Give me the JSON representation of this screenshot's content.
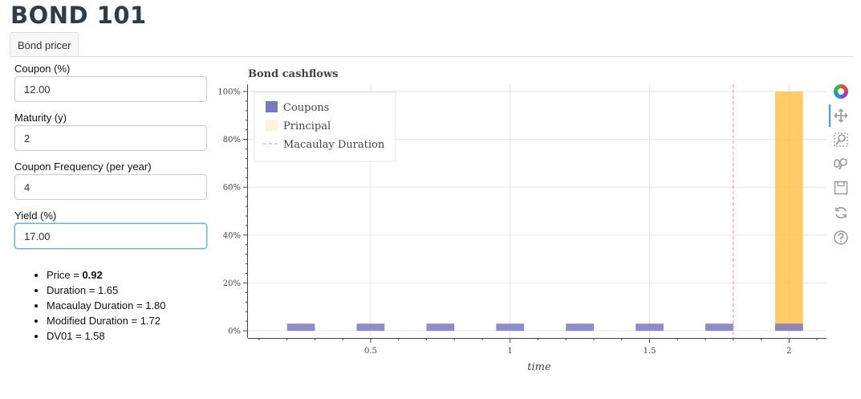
{
  "app_title": "BOND 101",
  "tabs": [
    {
      "label": "Bond pricer"
    }
  ],
  "form": {
    "coupon": {
      "label": "Coupon (%)",
      "value": "12.00"
    },
    "maturity": {
      "label": "Maturity (y)",
      "value": "2"
    },
    "frequency": {
      "label": "Coupon Frequency (per year)",
      "value": "4"
    },
    "yield": {
      "label": "Yield (%)",
      "value": "17.00"
    }
  },
  "metrics": {
    "price_label": "Price = ",
    "price_value": "0.92",
    "duration": "Duration = 1.65",
    "macaulay_duration": "Macaulay Duration = 1.80",
    "modified_duration": "Modified Duration = 1.72",
    "dv01": "DV01 = 1.58"
  },
  "toolbar": [
    "bokeh-logo-icon",
    "pan-icon",
    "box-zoom-icon",
    "wheel-zoom-icon",
    "save-icon",
    "reset-icon",
    "help-icon"
  ],
  "chart_data": {
    "type": "bar",
    "title": "Bond cashflows",
    "xlabel": "time",
    "ylabel": "",
    "xlim": [
      0.06,
      2.14
    ],
    "ylim": [
      -0.03,
      1.03
    ],
    "x_ticks": [
      0.5,
      1,
      1.5,
      2
    ],
    "x_tick_labels": [
      "0.5",
      "1",
      "1.5",
      "2"
    ],
    "y_ticks": [
      0,
      0.2,
      0.4,
      0.6,
      0.8,
      1.0
    ],
    "y_tick_labels": [
      "0%",
      "20%",
      "40%",
      "60%",
      "80%",
      "100%"
    ],
    "bar_width": 0.1,
    "grid": true,
    "legend_position": "top-left",
    "series": [
      {
        "name": "Coupons",
        "color": "#7b78c1",
        "x": [
          0.25,
          0.5,
          0.75,
          1.0,
          1.25,
          1.5,
          1.75,
          2.0
        ],
        "values": [
          0.03,
          0.03,
          0.03,
          0.03,
          0.03,
          0.03,
          0.03,
          0.03
        ]
      },
      {
        "name": "Principal",
        "color": "#ffc14d",
        "x": [
          2.0
        ],
        "values": [
          1.0
        ]
      }
    ],
    "macaulay_duration_line": {
      "name": "Macaulay Duration",
      "x": 1.8,
      "color": "#ef8fa3"
    }
  }
}
